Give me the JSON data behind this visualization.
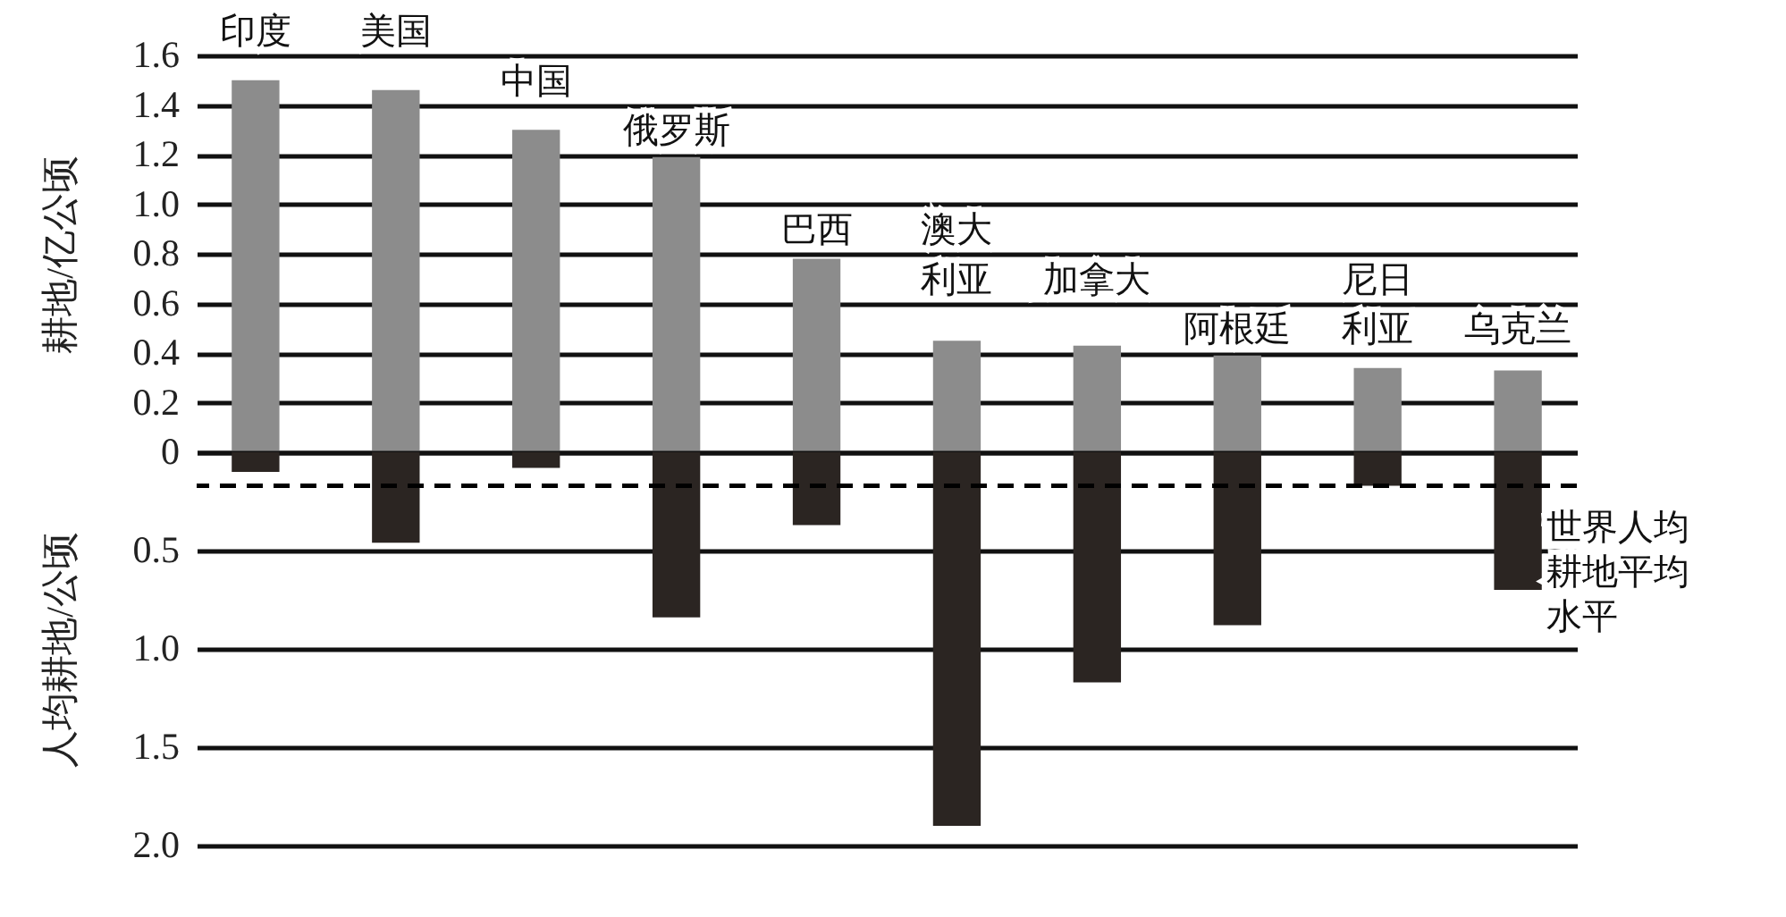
{
  "chart_data": [
    {
      "type": "bar",
      "ylabel": "耕地/亿公顷",
      "categories": [
        "印度",
        "美国",
        "中国",
        "俄罗斯",
        "巴西",
        "澳大利亚",
        "加拿大",
        "阿根廷",
        "尼日利亚",
        "乌克兰"
      ],
      "values": [
        1.5,
        1.46,
        1.3,
        1.19,
        0.78,
        0.45,
        0.43,
        0.39,
        0.34,
        0.33
      ],
      "color": "#8c8c8c",
      "ylim": [
        0,
        1.6
      ],
      "yticks": [
        0,
        0.2,
        0.4,
        0.6,
        0.8,
        {
          "value": 1,
          "label": "1.0"
        },
        1.2,
        1.4,
        1.6
      ],
      "grid": "y"
    },
    {
      "type": "bar",
      "ylabel": "人均耕地/公顷",
      "categories": [
        "印度",
        "美国",
        "中国",
        "俄罗斯",
        "巴西",
        "澳大利亚",
        "加拿大",
        "阿根廷",
        "尼日利亚",
        "乌克兰"
      ],
      "values": [
        0.1,
        0.46,
        0.08,
        0.84,
        0.37,
        1.9,
        1.17,
        0.88,
        0.17,
        0.7
      ],
      "color": "#2b2522",
      "ylim": [
        2,
        0
      ],
      "yticks": [
        {
          "value": 0,
          "label": null
        },
        0.5,
        {
          "value": 1,
          "label": "1.0"
        },
        1.5,
        {
          "value": 2,
          "label": "2.0"
        }
      ],
      "grid": "y",
      "tick_labels": "y",
      "ref_lines": [
        {
          "axis": "y",
          "value": 0.17,
          "label": "世界人均耕地平均水平",
          "line_style": "dashed",
          "color": "#000000"
        }
      ]
    }
  ]
}
